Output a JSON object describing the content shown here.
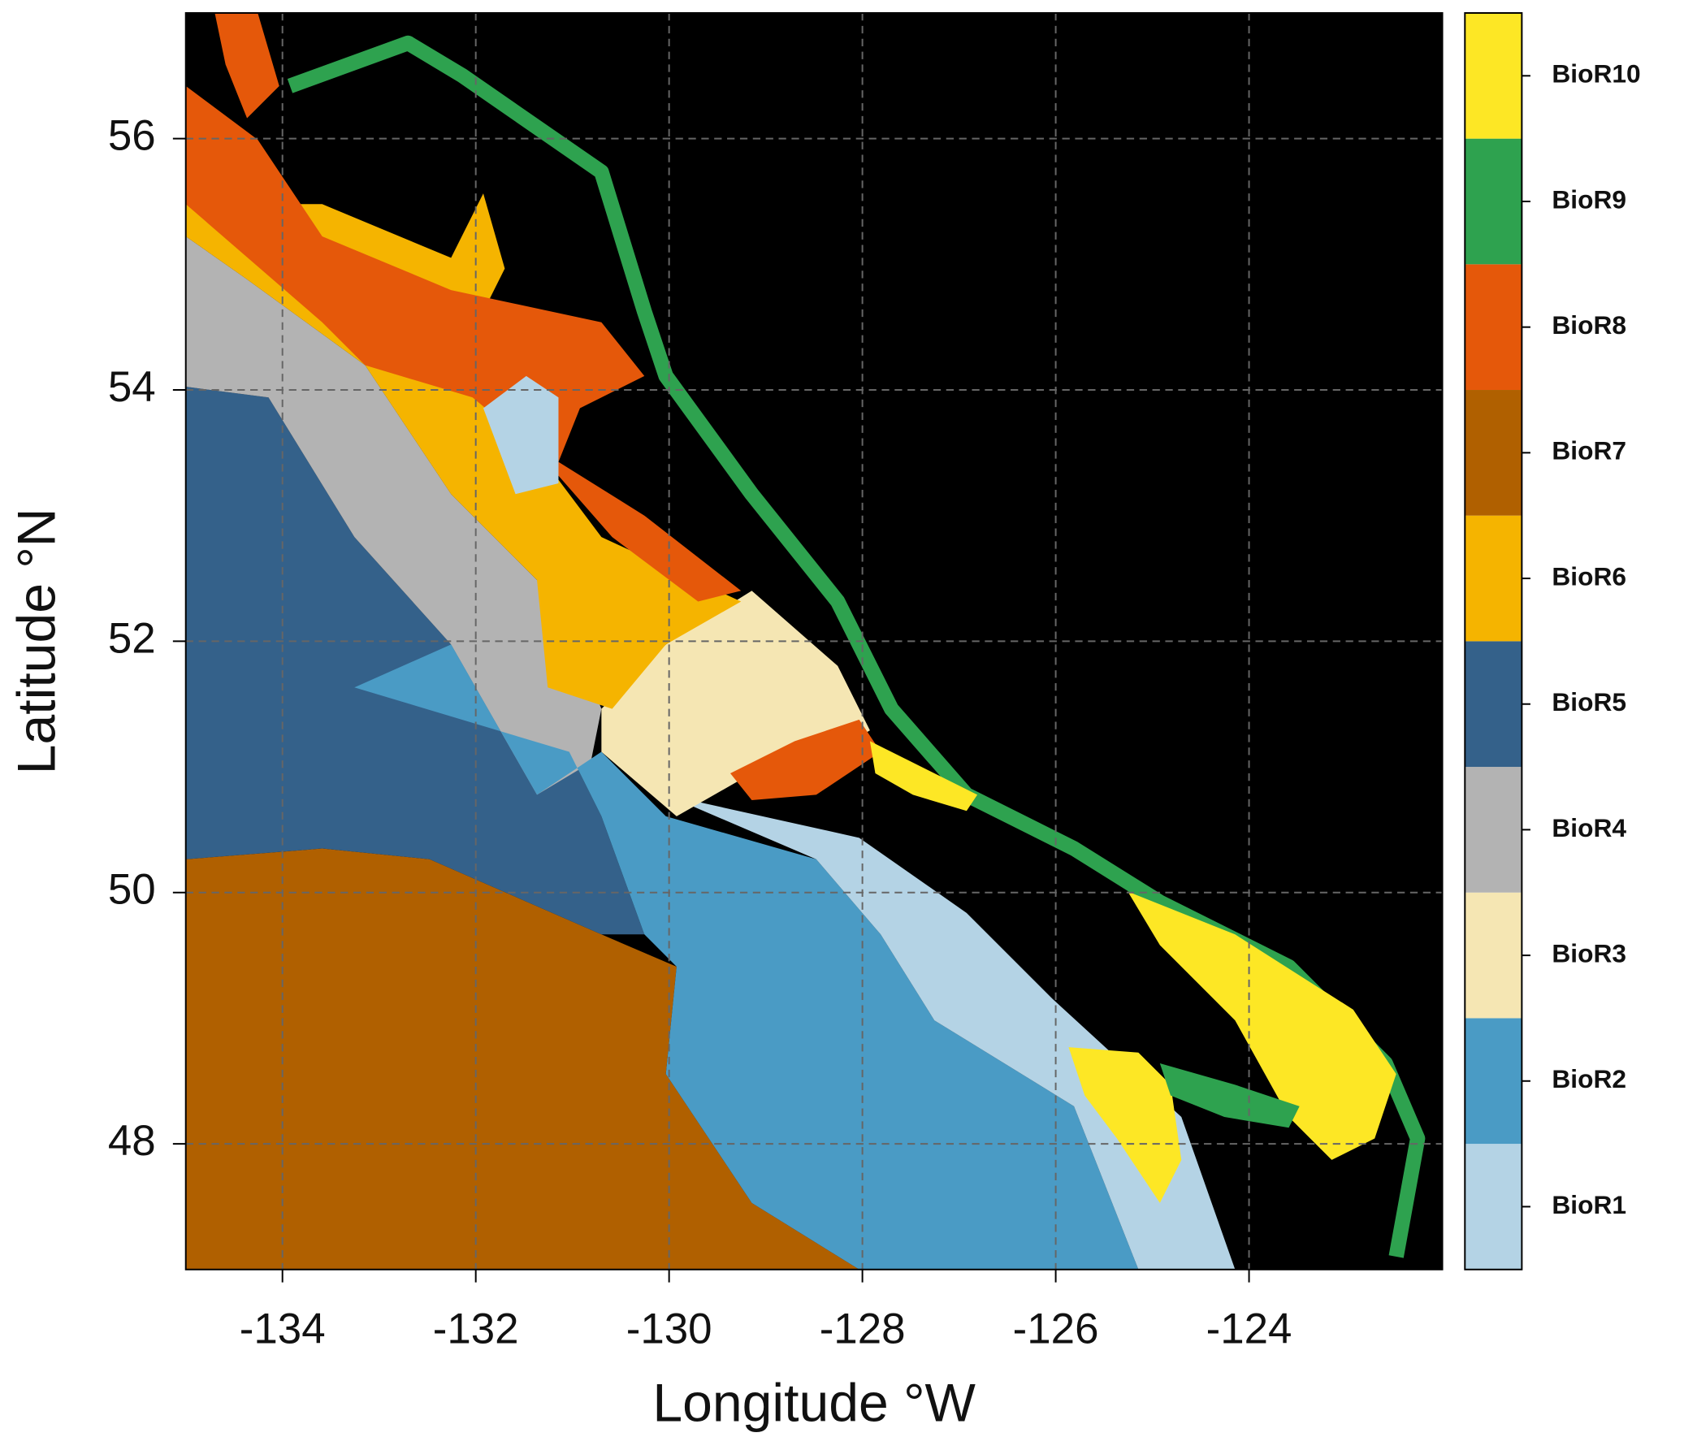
{
  "chart_data": {
    "type": "map",
    "xlabel": "Longitude °W",
    "ylabel": "Latitude °N",
    "xlim": [
      -135,
      -122
    ],
    "ylim": [
      47,
      57
    ],
    "xticks": [
      -134,
      -132,
      -130,
      -128,
      -126,
      -124
    ],
    "yticks": [
      48,
      50,
      52,
      54,
      56
    ],
    "grid": true,
    "series": [
      {
        "name": "BioR1",
        "color": "#b4d3e5"
      },
      {
        "name": "BioR2",
        "color": "#4a9bc5"
      },
      {
        "name": "BioR3",
        "color": "#f5e6b3"
      },
      {
        "name": "BioR4",
        "color": "#b3b3b3"
      },
      {
        "name": "BioR5",
        "color": "#34618a"
      },
      {
        "name": "BioR6",
        "color": "#f5b400"
      },
      {
        "name": "BioR7",
        "color": "#b06000"
      },
      {
        "name": "BioR8",
        "color": "#e5580a"
      },
      {
        "name": "BioR9",
        "color": "#2ea24f"
      },
      {
        "name": "BioR10",
        "color": "#fde725"
      }
    ]
  }
}
